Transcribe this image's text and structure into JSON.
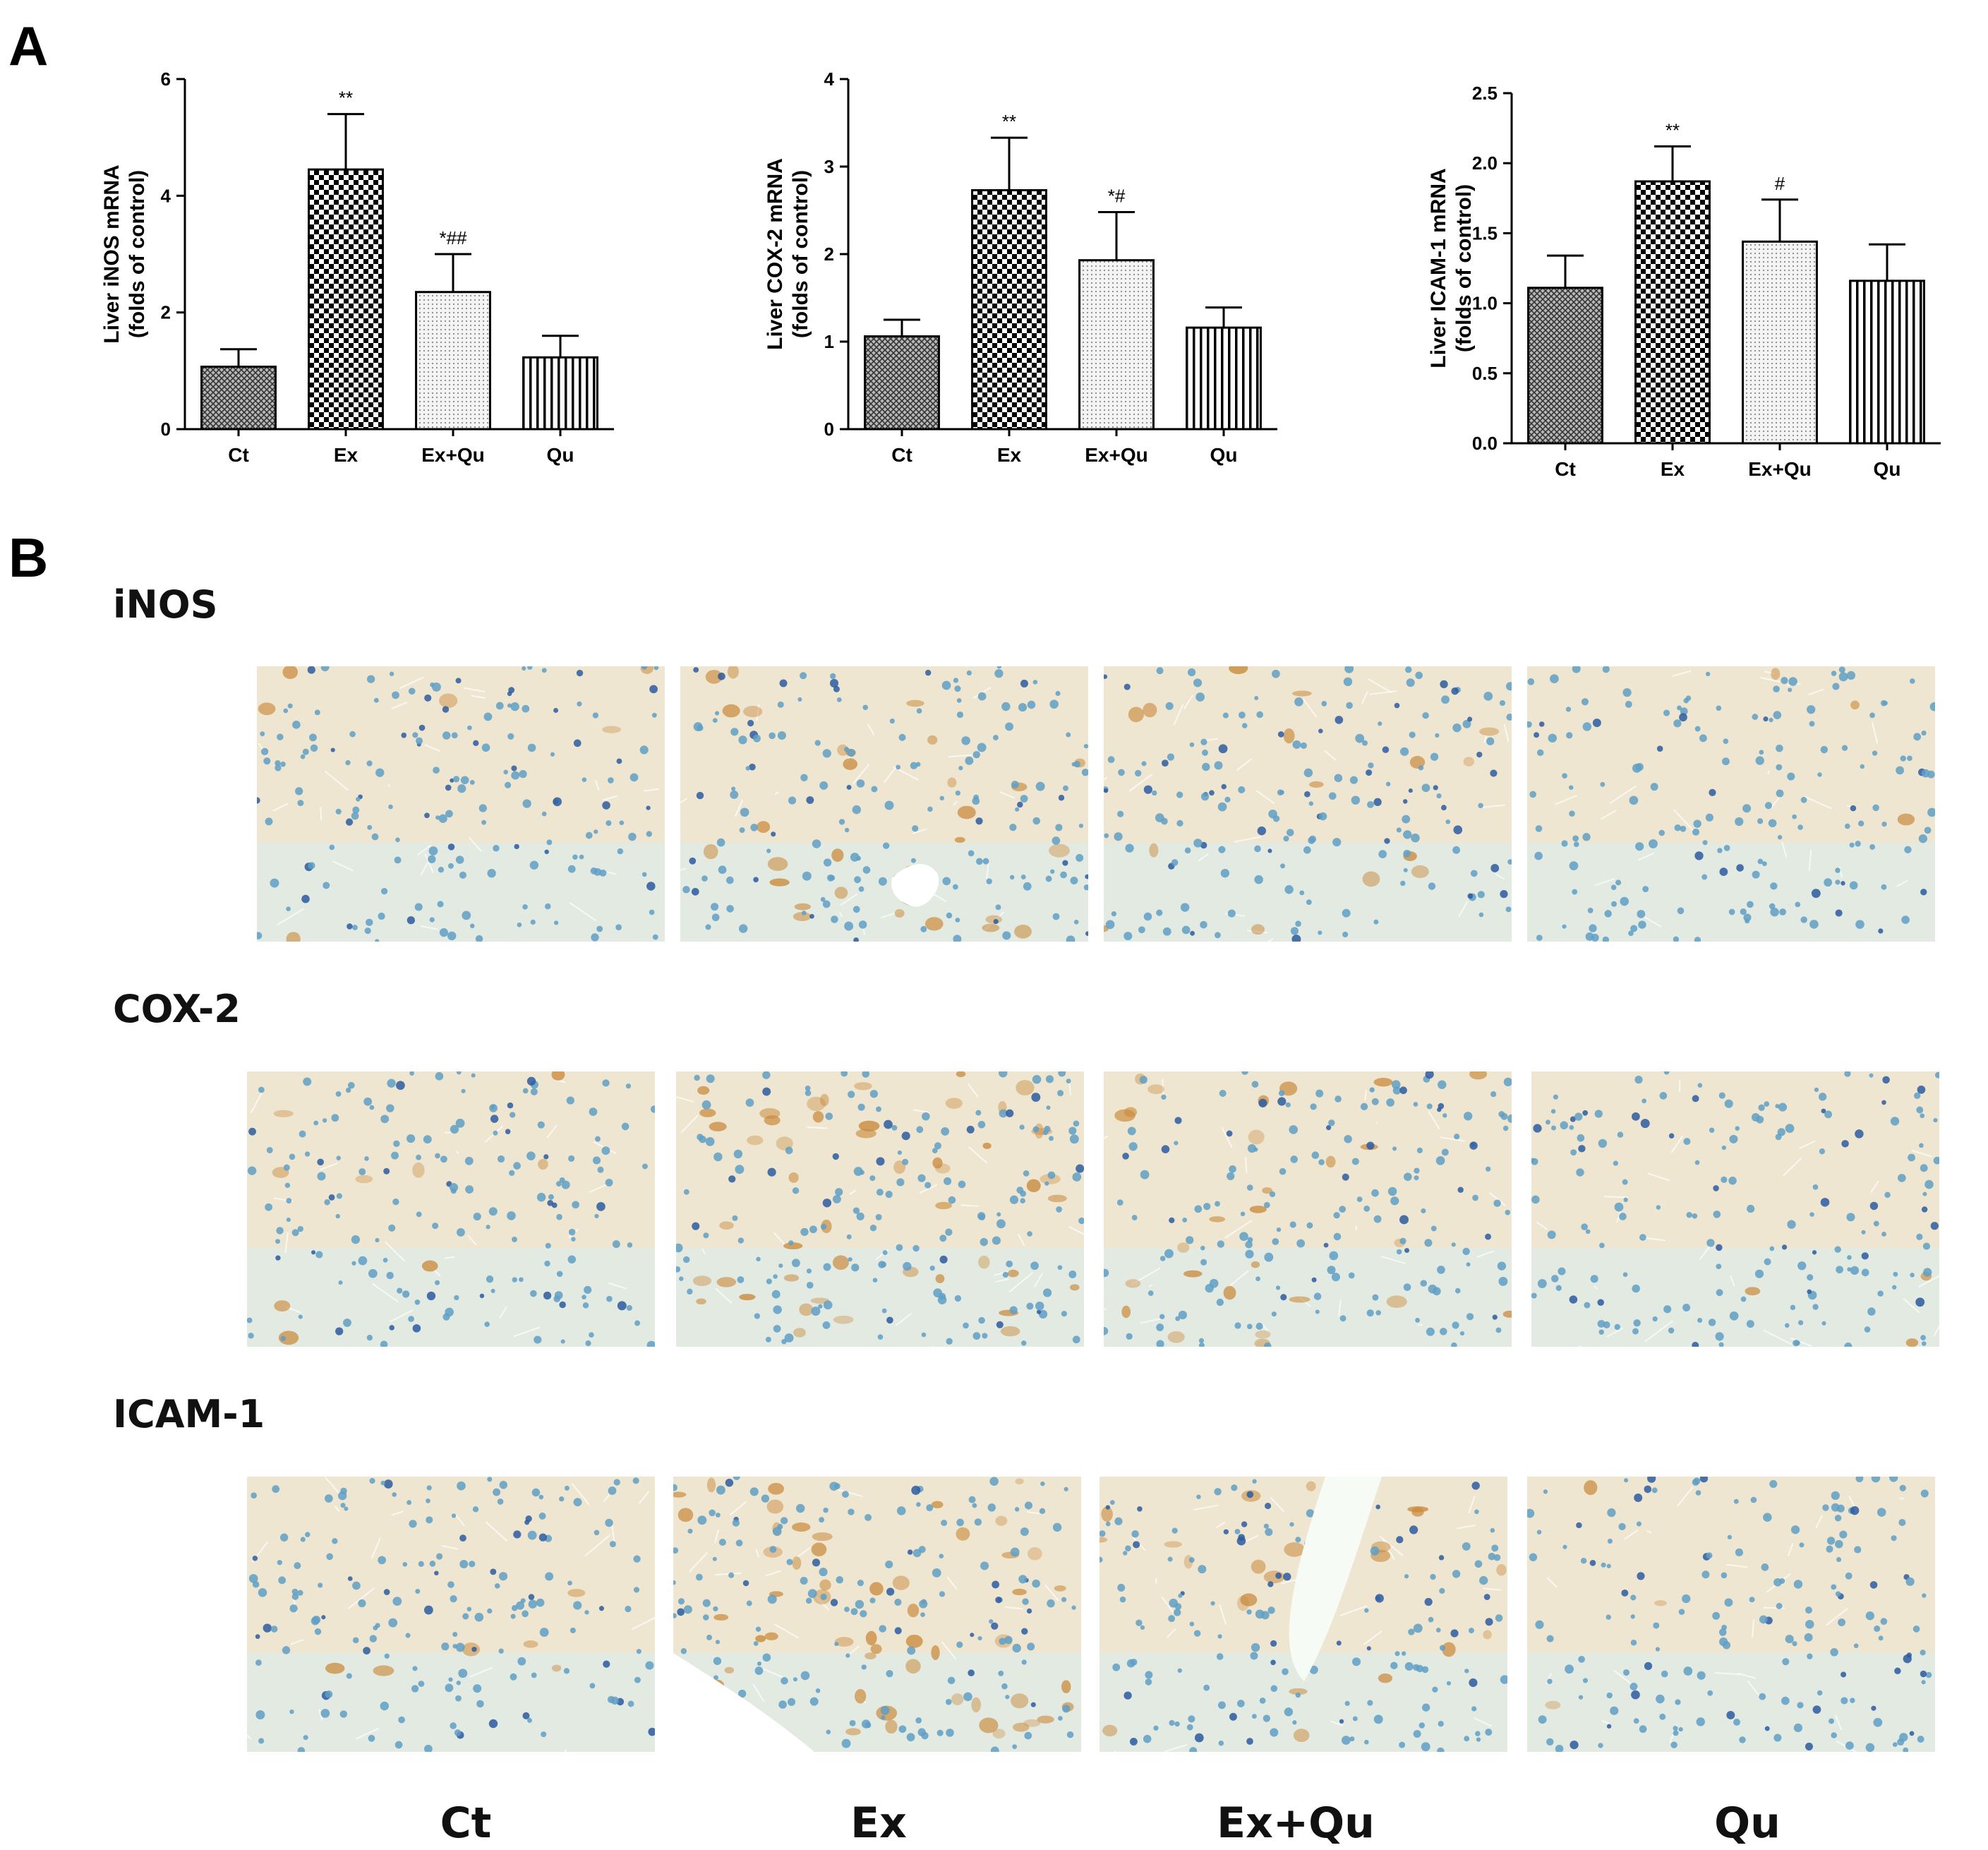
{
  "panels": {
    "a": "A",
    "b": "B"
  },
  "chart_data": [
    {
      "type": "bar",
      "id": "inos-chart",
      "ylabel_line1": "Liver iNOS mRNA",
      "ylabel_line2": "(folds of control)",
      "categories": [
        "Ct",
        "Ex",
        "Ex+Qu",
        "Qu"
      ],
      "values": [
        1.07,
        4.45,
        2.35,
        1.23
      ],
      "errors": [
        0.3,
        0.95,
        0.65,
        0.37
      ],
      "annotations": [
        "",
        "**",
        "*##",
        ""
      ],
      "ylim": [
        0,
        6
      ],
      "yticks": [
        "0",
        "2",
        "4",
        "6"
      ],
      "ytick_values": [
        0,
        2,
        4,
        6
      ]
    },
    {
      "type": "bar",
      "id": "cox2-chart",
      "ylabel_line1": "Liver COX-2 mRNA",
      "ylabel_line2": "(folds of control)",
      "categories": [
        "Ct",
        "Ex",
        "Ex+Qu",
        "Qu"
      ],
      "values": [
        1.06,
        2.73,
        1.93,
        1.16
      ],
      "errors": [
        0.19,
        0.6,
        0.55,
        0.23
      ],
      "annotations": [
        "",
        "**",
        "*#",
        ""
      ],
      "ylim": [
        0,
        4
      ],
      "yticks": [
        "0",
        "1",
        "2",
        "3",
        "4"
      ],
      "ytick_values": [
        0,
        1,
        2,
        3,
        4
      ]
    },
    {
      "type": "bar",
      "id": "icam1-chart",
      "ylabel_line1": "Liver ICAM-1 mRNA",
      "ylabel_line2": "(folds of control)",
      "categories": [
        "Ct",
        "Ex",
        "Ex+Qu",
        "Qu"
      ],
      "values": [
        1.11,
        1.87,
        1.44,
        1.16
      ],
      "errors": [
        0.23,
        0.25,
        0.3,
        0.26
      ],
      "annotations": [
        "",
        "**",
        "#",
        ""
      ],
      "ylim": [
        0,
        2.5
      ],
      "yticks": [
        "0.0",
        "0.5",
        "1.0",
        "1.5",
        "2.0",
        "2.5"
      ],
      "ytick_values": [
        0,
        0.5,
        1.0,
        1.5,
        2.0,
        2.5
      ]
    }
  ],
  "stains": [
    {
      "label": "iNOS"
    },
    {
      "label": "COX-2"
    },
    {
      "label": "ICAM-1"
    }
  ],
  "groups": [
    "Ct",
    "Ex",
    "Ex+Qu",
    "Qu"
  ],
  "colors": {
    "tissue_bg": "#efe6d2",
    "nucleus": "#5f9fc6",
    "nucleus_dark": "#2c5aa0",
    "stain_brown": "#c98a3c",
    "bar_stroke": "#000000"
  }
}
